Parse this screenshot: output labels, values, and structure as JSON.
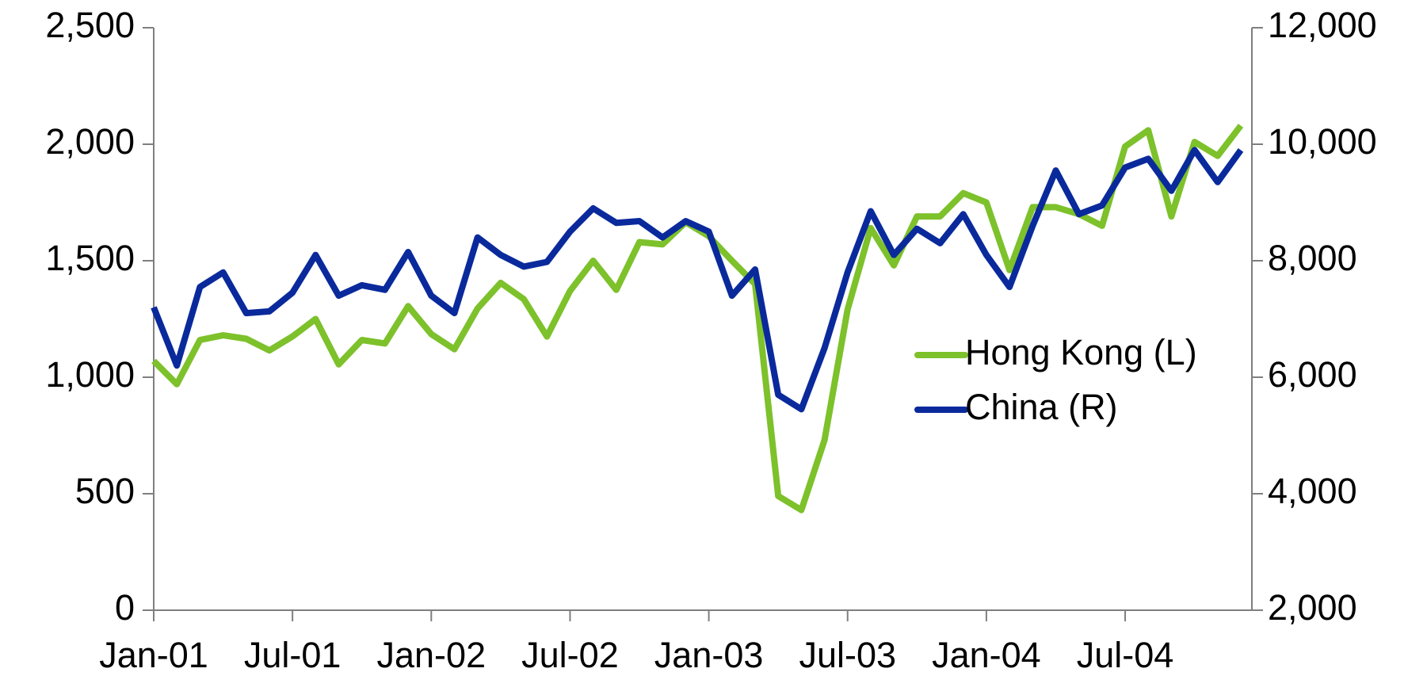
{
  "chart_data": {
    "type": "line",
    "categories": [
      "Jan-01",
      null,
      null,
      null,
      null,
      null,
      "Jul-01",
      null,
      null,
      null,
      null,
      null,
      "Jan-02",
      null,
      null,
      null,
      null,
      null,
      "Jul-02",
      null,
      null,
      null,
      null,
      null,
      "Jan-03",
      null,
      null,
      null,
      null,
      null,
      "Jul-03",
      null,
      null,
      null,
      null,
      null,
      "Jan-04",
      null,
      null,
      null,
      null,
      null,
      "Jul-04",
      null,
      null,
      null,
      null,
      null
    ],
    "series": [
      {
        "name": "Hong Kong (L)",
        "color": "#7dc12b",
        "axis": "y",
        "values": [
          1070,
          970,
          1160,
          1180,
          1165,
          1115,
          1175,
          1250,
          1055,
          1160,
          1145,
          1305,
          1185,
          1120,
          1295,
          1405,
          1335,
          1175,
          1370,
          1500,
          1375,
          1580,
          1570,
          1665,
          1605,
          1500,
          1400,
          490,
          430,
          730,
          1290,
          1640,
          1480,
          1690,
          1690,
          1790,
          1750,
          1460,
          1730,
          1730,
          1700,
          1650,
          1990,
          2060,
          1690,
          2010,
          1950,
          2080
        ]
      },
      {
        "name": "China (R)",
        "color": "#0a2a9c",
        "axis": "y2",
        "values": [
          7200,
          6200,
          7550,
          7800,
          7100,
          7130,
          7450,
          8100,
          7400,
          7580,
          7500,
          8150,
          7400,
          7100,
          8400,
          8100,
          7900,
          7980,
          8500,
          8900,
          8650,
          8680,
          8400,
          8680,
          8500,
          7400,
          7850,
          5700,
          5450,
          6500,
          7800,
          8850,
          8100,
          8550,
          8300,
          8800,
          8100,
          7550,
          8600,
          9550,
          8800,
          8950,
          9600,
          9750,
          9200,
          9900,
          9350,
          9900
        ]
      }
    ],
    "ylim": [
      0,
      2500
    ],
    "yticks": [
      0,
      500,
      {
        "value": 1000,
        "label": "1,000"
      },
      {
        "value": 1500,
        "label": "1,500"
      },
      {
        "value": 2000,
        "label": "2,000"
      },
      {
        "value": 2500,
        "label": "2,500"
      }
    ],
    "y2lim": [
      2000,
      12000
    ],
    "y2ticks": [
      {
        "value": 2000,
        "label": "2,000"
      },
      {
        "value": 4000,
        "label": "4,000"
      },
      {
        "value": 6000,
        "label": "6,000"
      },
      {
        "value": 8000,
        "label": "8,000"
      },
      {
        "value": 10000,
        "label": "10,000"
      },
      {
        "value": 12000,
        "label": "12,000"
      }
    ],
    "grid": false,
    "legend": "right"
  }
}
